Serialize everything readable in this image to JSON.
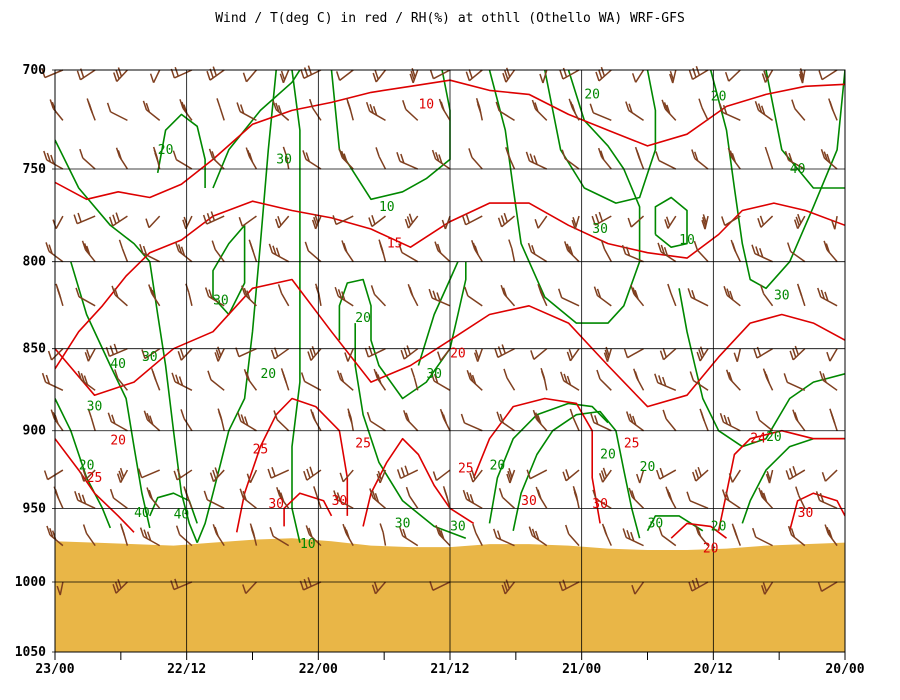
{
  "chart_data": {
    "type": "line",
    "title": "Wind / T(deg C) in red / RH(%) at othll (Othello WA)  WRF-GFS",
    "ylabel": "",
    "xlabel": "",
    "y_scale": "pressure (log-p, hPa)",
    "ylim": [
      700,
      1050
    ],
    "y_ticks": [
      "700",
      "750",
      "800",
      "850",
      "900",
      "950",
      "1000",
      "1050"
    ],
    "x_ticks": [
      "23/00",
      "22/12",
      "22/00",
      "21/12",
      "21/00",
      "20/12",
      "20/00"
    ],
    "x_direction": "time runs right-to-left (23/00 at left, 20/00 at right)",
    "grid": true,
    "colors": {
      "temperature": "#dd0000",
      "rh": "#008800",
      "wind": "#7f3f1f",
      "terrain": "#e9b647",
      "grid": "#000000"
    },
    "terrain": {
      "description": "surface pressure (hPa) along time",
      "x": [
        0,
        5,
        10,
        15,
        20,
        25,
        30,
        35,
        40,
        45,
        50,
        55,
        60,
        65,
        70,
        75,
        80,
        85,
        90,
        95,
        100
      ],
      "surface_hPa": [
        972,
        973,
        974,
        975,
        973,
        971,
        970,
        972,
        975,
        976,
        976,
        974,
        974,
        975,
        977,
        978,
        978,
        977,
        975,
        974,
        973
      ]
    },
    "series": [
      {
        "name": "T(deg C)",
        "kind": "temperature",
        "labels": [
          {
            "text": "10",
            "x": 47,
            "p": 717
          },
          {
            "text": "15",
            "x": 43,
            "p": 790
          },
          {
            "text": "20",
            "x": 51,
            "p": 853
          },
          {
            "text": "20",
            "x": 8,
            "p": 906
          },
          {
            "text": "25",
            "x": 26,
            "p": 912
          },
          {
            "text": "25",
            "x": 39,
            "p": 908
          },
          {
            "text": "25",
            "x": 52,
            "p": 924
          },
          {
            "text": "25",
            "x": 73,
            "p": 908
          },
          {
            "text": "25",
            "x": 5,
            "p": 930
          },
          {
            "text": "24",
            "x": 89,
            "p": 905
          },
          {
            "text": "30",
            "x": 28,
            "p": 947
          },
          {
            "text": "30",
            "x": 36,
            "p": 945
          },
          {
            "text": "30",
            "x": 60,
            "p": 945
          },
          {
            "text": "30",
            "x": 69,
            "p": 947
          },
          {
            "text": "30",
            "x": 95,
            "p": 953
          },
          {
            "text": "20",
            "x": 83,
            "p": 977
          }
        ]
      },
      {
        "name": "RH(%)",
        "kind": "rh",
        "labels": [
          {
            "text": "20",
            "x": 14,
            "p": 740
          },
          {
            "text": "30",
            "x": 29,
            "p": 745
          },
          {
            "text": "10",
            "x": 42,
            "p": 770
          },
          {
            "text": "20",
            "x": 68,
            "p": 712
          },
          {
            "text": "20",
            "x": 84,
            "p": 713
          },
          {
            "text": "40",
            "x": 94,
            "p": 750
          },
          {
            "text": "30",
            "x": 69,
            "p": 782
          },
          {
            "text": "10",
            "x": 80,
            "p": 788
          },
          {
            "text": "30",
            "x": 21,
            "p": 822
          },
          {
            "text": "20",
            "x": 39,
            "p": 832
          },
          {
            "text": "30",
            "x": 92,
            "p": 819
          },
          {
            "text": "30",
            "x": 12,
            "p": 855
          },
          {
            "text": "40",
            "x": 8,
            "p": 859
          },
          {
            "text": "20",
            "x": 27,
            "p": 865
          },
          {
            "text": "30",
            "x": 48,
            "p": 865
          },
          {
            "text": "30",
            "x": 5,
            "p": 885
          },
          {
            "text": "20",
            "x": 4,
            "p": 922
          },
          {
            "text": "20",
            "x": 56,
            "p": 922
          },
          {
            "text": "20",
            "x": 70,
            "p": 915
          },
          {
            "text": "20",
            "x": 75,
            "p": 923
          },
          {
            "text": "20",
            "x": 91,
            "p": 904
          },
          {
            "text": "40",
            "x": 11,
            "p": 953
          },
          {
            "text": "40",
            "x": 16,
            "p": 954
          },
          {
            "text": "30",
            "x": 44,
            "p": 960
          },
          {
            "text": "30",
            "x": 51,
            "p": 962
          },
          {
            "text": "30",
            "x": 76,
            "p": 960
          },
          {
            "text": "20",
            "x": 84,
            "p": 962
          },
          {
            "text": "10",
            "x": 32,
            "p": 974
          }
        ]
      }
    ],
    "wind_barbs": {
      "count_columns": 25,
      "levels_hPa": [
        700,
        725,
        750,
        775,
        800,
        825,
        850,
        875,
        900,
        925,
        950,
        975,
        1000
      ],
      "units": "knots"
    }
  }
}
